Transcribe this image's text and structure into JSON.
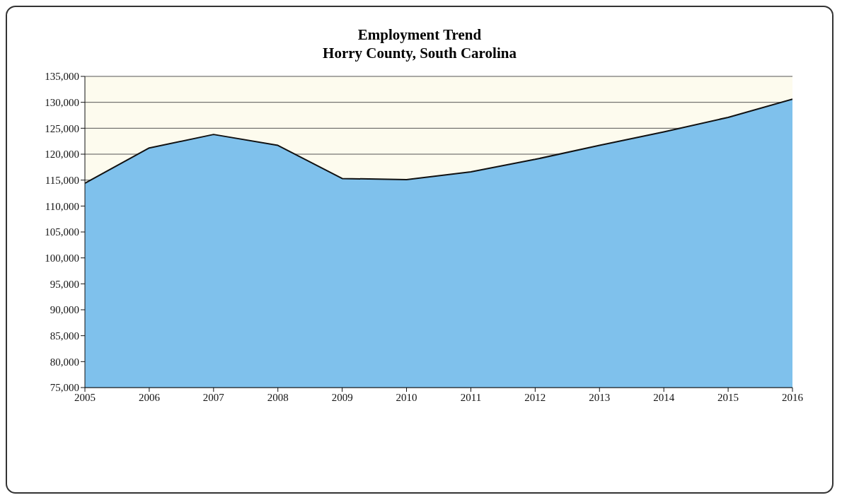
{
  "chart_data": {
    "type": "area",
    "title": "Employment Trend\nHorry County, South Carolina",
    "categories": [
      "2005",
      "2006",
      "2007",
      "2008",
      "2009",
      "2010",
      "2011",
      "2012",
      "2013",
      "2014",
      "2015",
      "2016"
    ],
    "values": [
      114400,
      121200,
      123800,
      121700,
      115300,
      115100,
      116600,
      119000,
      121700,
      124300,
      127100,
      130600
    ],
    "color": "#7fc1ec",
    "ylim": [
      75000,
      135000
    ],
    "yticks": [
      {
        "value": 75000,
        "label": "75,000"
      },
      {
        "value": 80000,
        "label": "80,000"
      },
      {
        "value": 85000,
        "label": "85,000"
      },
      {
        "value": 90000,
        "label": "90,000"
      },
      {
        "value": 95000,
        "label": "95,000"
      },
      {
        "value": 100000,
        "label": "100,000"
      },
      {
        "value": 105000,
        "label": "105,000"
      },
      {
        "value": 110000,
        "label": "110,000"
      },
      {
        "value": 115000,
        "label": "115,000"
      },
      {
        "value": 120000,
        "label": "120,000"
      },
      {
        "value": 125000,
        "label": "125,000"
      },
      {
        "value": 130000,
        "label": "130,000"
      },
      {
        "value": 135000,
        "label": "135,000"
      }
    ],
    "grid": "y",
    "legend": false
  }
}
